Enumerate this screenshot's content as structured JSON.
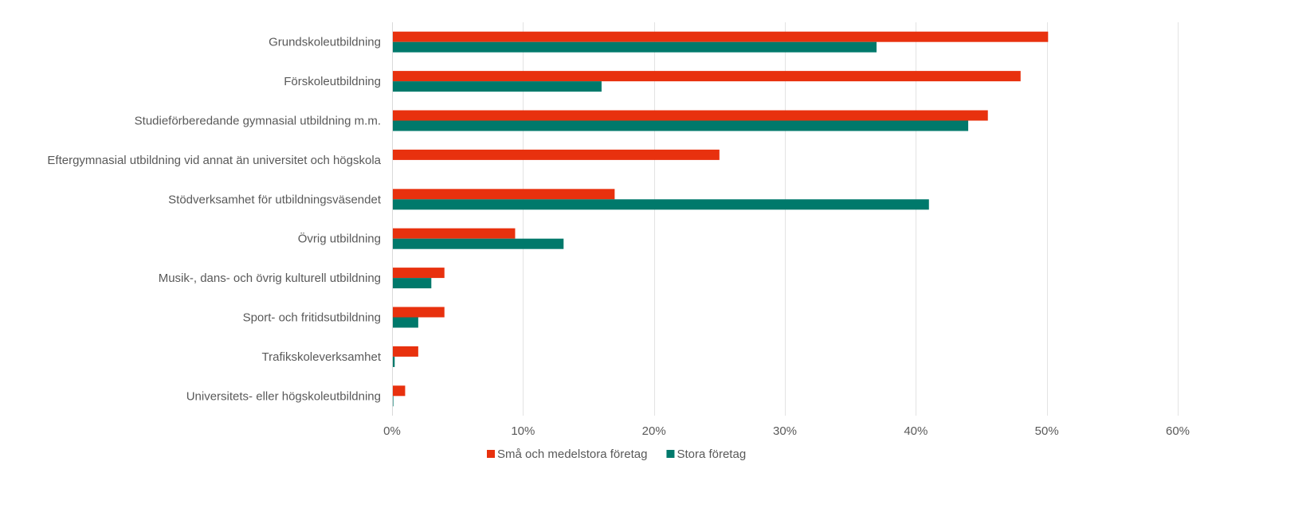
{
  "chart_data": {
    "type": "bar",
    "orientation": "horizontal",
    "categories": [
      "Grundskoleutbildning",
      "Förskoleutbildning",
      "Studieförberedande gymnasial utbildning m.m.",
      "Eftergymnasial utbildning vid annat än universitet och högskola",
      "Stödverksamhet för utbildningsväsendet",
      "Övrig utbildning",
      "Musik-, dans- och övrig kulturell utbildning",
      "Sport- och fritidsutbildning",
      "Trafikskoleverksamhet",
      "Universitets- eller högskoleutbildning"
    ],
    "series": [
      {
        "name": "Små och medelstora företag",
        "color": "#E8310E",
        "values": [
          50.1,
          48.0,
          45.5,
          25.0,
          17.0,
          9.4,
          4.0,
          4.0,
          2.0,
          1.0
        ]
      },
      {
        "name": "Stora företag",
        "color": "#00796B",
        "values": [
          37.0,
          16.0,
          44.0,
          0.0,
          41.0,
          13.1,
          3.0,
          2.0,
          0.2,
          0.1
        ]
      }
    ],
    "xlim": [
      0,
      60
    ],
    "xticks": [
      "0%",
      "10%",
      "20%",
      "30%",
      "40%",
      "50%",
      "60%"
    ],
    "xtick_values": [
      0,
      10,
      20,
      30,
      40,
      50,
      60
    ],
    "grid": true,
    "legend_position": "bottom",
    "title": "",
    "xlabel": "",
    "ylabel": "",
    "axis_color": "#d9d9d9",
    "grid_color": "#e3e3e3"
  }
}
